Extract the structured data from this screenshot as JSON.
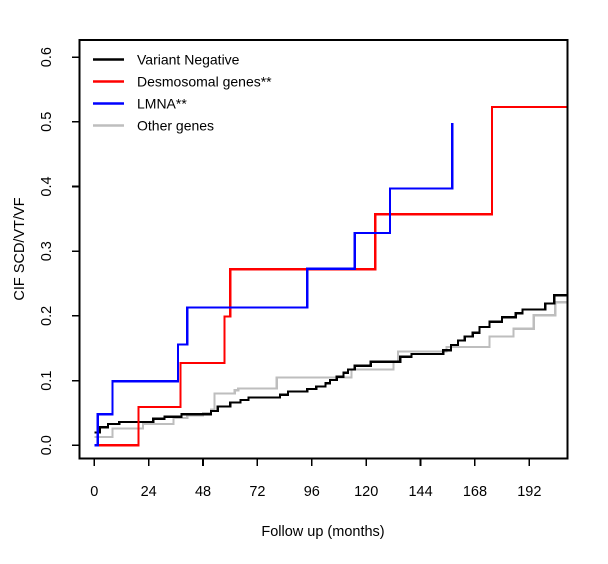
{
  "figure": {
    "background": "#ffffff",
    "title": ""
  },
  "chart_data": {
    "type": "line",
    "step": true,
    "title": "",
    "xlabel": "Follow up (months)",
    "ylabel": "CIF SCD/VT/VF",
    "xlim": [
      0,
      208
    ],
    "ylim": [
      0,
      0.6
    ],
    "x_ticks": [
      0,
      24,
      48,
      72,
      96,
      120,
      144,
      168,
      192
    ],
    "y_ticks": [
      0.0,
      0.1,
      0.2,
      0.3,
      0.4,
      0.5,
      0.6
    ],
    "grid": false,
    "legend_position": "top-left",
    "series": [
      {
        "name": "Other genes",
        "color": "#bebebe",
        "end": 208.5,
        "points": [
          [
            0,
            0.013
          ],
          [
            8,
            0.026
          ],
          [
            21.5,
            0.033
          ],
          [
            35,
            0.042
          ],
          [
            41,
            0.046
          ],
          [
            48,
            0.05
          ],
          [
            51.5,
            0.055
          ],
          [
            53,
            0.08
          ],
          [
            62,
            0.085
          ],
          [
            63.5,
            0.088
          ],
          [
            80.5,
            0.105
          ],
          [
            113.5,
            0.117
          ],
          [
            132,
            0.129
          ],
          [
            134,
            0.145
          ],
          [
            155.5,
            0.152
          ],
          [
            174.5,
            0.168
          ],
          [
            185,
            0.18
          ],
          [
            194,
            0.201
          ],
          [
            203.5,
            0.221
          ]
        ]
      },
      {
        "name": "Variant Negative",
        "color": "#000000",
        "end": 208.5,
        "points": [
          [
            0,
            0.02
          ],
          [
            2.5,
            0.028
          ],
          [
            6,
            0.033
          ],
          [
            11,
            0.036
          ],
          [
            26,
            0.041
          ],
          [
            31,
            0.044
          ],
          [
            38.5,
            0.048
          ],
          [
            51.5,
            0.053
          ],
          [
            54.5,
            0.06
          ],
          [
            60,
            0.066
          ],
          [
            64.5,
            0.07
          ],
          [
            68,
            0.074
          ],
          [
            82,
            0.078
          ],
          [
            85.5,
            0.083
          ],
          [
            94,
            0.087
          ],
          [
            98,
            0.091
          ],
          [
            102,
            0.096
          ],
          [
            104,
            0.101
          ],
          [
            107,
            0.106
          ],
          [
            110,
            0.112
          ],
          [
            112,
            0.117
          ],
          [
            115,
            0.123
          ],
          [
            122,
            0.129
          ],
          [
            135,
            0.137
          ],
          [
            140,
            0.141
          ],
          [
            154,
            0.147
          ],
          [
            157.5,
            0.155
          ],
          [
            160.5,
            0.162
          ],
          [
            163.5,
            0.168
          ],
          [
            167,
            0.174
          ],
          [
            170,
            0.183
          ],
          [
            174.5,
            0.191
          ],
          [
            180,
            0.198
          ],
          [
            186,
            0.204
          ],
          [
            189,
            0.21
          ],
          [
            199,
            0.219
          ],
          [
            203,
            0.232
          ]
        ]
      },
      {
        "name": "Desmosomal genes**",
        "color": "#ff0000",
        "end": 208.5,
        "points": [
          [
            0,
            0
          ],
          [
            19.5,
            0.059
          ],
          [
            38,
            0.127
          ],
          [
            57.5,
            0.199
          ],
          [
            60,
            0.272
          ],
          [
            124,
            0.357
          ],
          [
            175.5,
            0.523
          ]
        ]
      },
      {
        "name": "LMNA**",
        "color": "#0000ff",
        "end": 158,
        "points": [
          [
            0,
            0
          ],
          [
            1.5,
            0.048
          ],
          [
            8,
            0.099
          ],
          [
            37,
            0.156
          ],
          [
            41,
            0.213
          ],
          [
            94,
            0.273
          ],
          [
            115,
            0.328
          ],
          [
            130.5,
            0.397
          ],
          [
            158,
            0.498
          ]
        ]
      }
    ],
    "legend_order": [
      "Variant Negative",
      "Desmosomal genes**",
      "LMNA**",
      "Other genes"
    ],
    "y_tick_decimals": 1
  }
}
